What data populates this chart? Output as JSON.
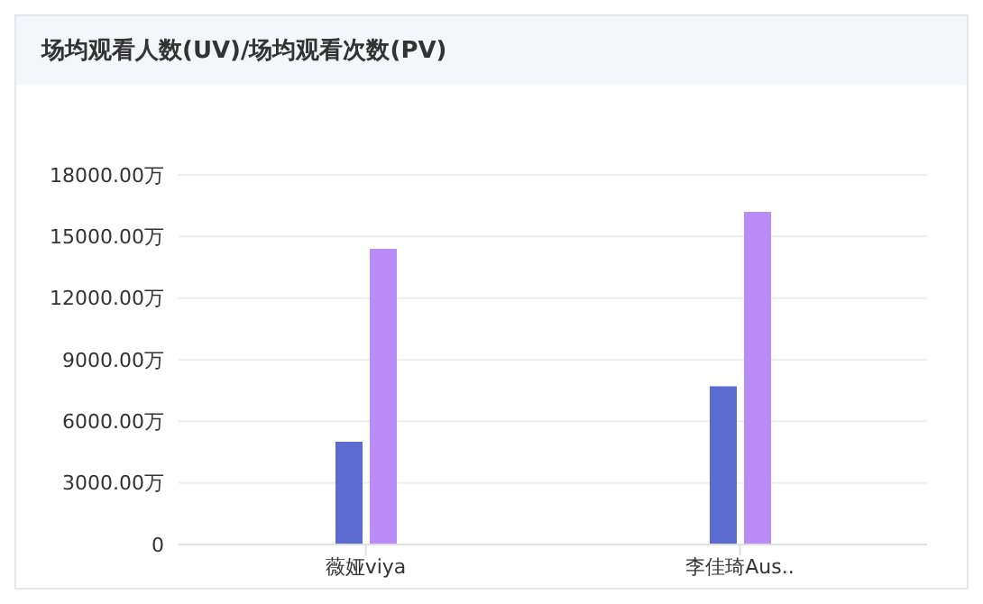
{
  "chart_data": {
    "type": "bar",
    "title": "场均观看人数(UV)/场均观看次数(PV)",
    "categories": [
      "薇娅viya",
      "李佳琦Aus.."
    ],
    "series": [
      {
        "color": "#5b6bd0",
        "values": [
          5000,
          7700
        ]
      },
      {
        "color": "#b98cf7",
        "values": [
          14400,
          16200
        ]
      }
    ],
    "ylim": [
      0,
      18000
    ],
    "yticks": [
      0,
      {
        "value": 3000,
        "label": "3000.00万"
      },
      {
        "value": 6000,
        "label": "6000.00万"
      },
      {
        "value": 9000,
        "label": "9000.00万"
      },
      {
        "value": 12000,
        "label": "12000.00万"
      },
      {
        "value": 15000,
        "label": "15000.00万"
      },
      {
        "value": 18000,
        "label": "18000.00万"
      }
    ],
    "grid": "y"
  }
}
